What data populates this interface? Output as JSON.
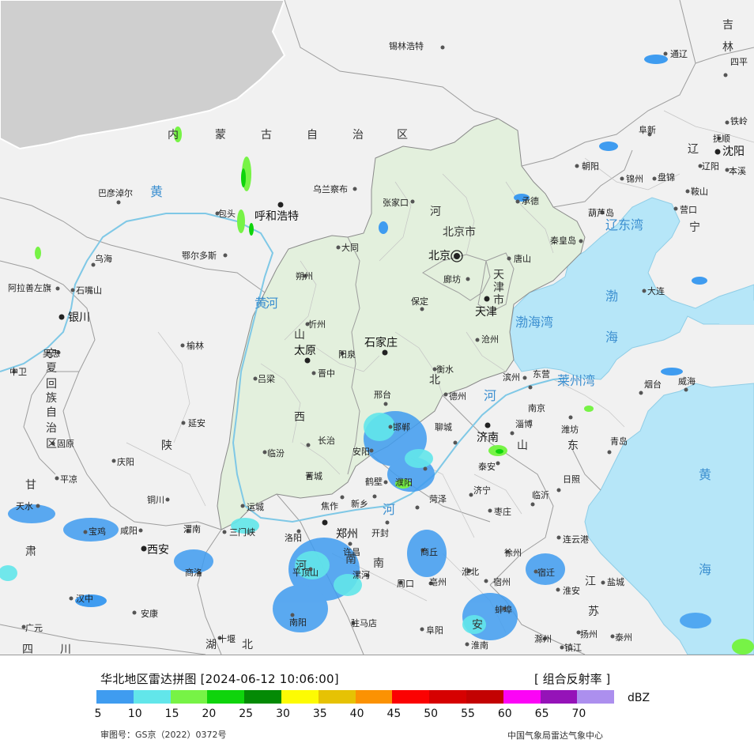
{
  "legend": {
    "title": "华北地区雷达拼图 [2024-06-12 10:06:00]",
    "product": "[ 组合反射率 ]",
    "unit": "dBZ",
    "review_number": "审图号：GS京（2022）0372号",
    "source": "中国气象局雷达气象中心",
    "scale": [
      {
        "value": "5",
        "color": "#3f9cf0"
      },
      {
        "value": "10",
        "color": "#62e6ea"
      },
      {
        "value": "15",
        "color": "#77f346"
      },
      {
        "value": "20",
        "color": "#0fd40c"
      },
      {
        "value": "25",
        "color": "#048a05"
      },
      {
        "value": "30",
        "color": "#fdfb03"
      },
      {
        "value": "35",
        "color": "#e6c204"
      },
      {
        "value": "40",
        "color": "#fb9203"
      },
      {
        "value": "45",
        "color": "#fb0202"
      },
      {
        "value": "50",
        "color": "#d60101"
      },
      {
        "value": "55",
        "color": "#c30202"
      },
      {
        "value": "60",
        "color": "#fc04f6"
      },
      {
        "value": "65",
        "color": "#9513b8"
      },
      {
        "value": "70",
        "color": "#ac8fee"
      }
    ]
  },
  "map": {
    "colors": {
      "land": "#f1f1f1",
      "sea": "#b6e6f8",
      "region": "#e3f0dd",
      "foreign": "#cfcfcf"
    },
    "cities": [
      {
        "name": "锡林浩特"
      },
      {
        "name": "通辽"
      },
      {
        "name": "四平"
      },
      {
        "name": "铁岭"
      },
      {
        "name": "抚顺"
      },
      {
        "name": "阜新"
      },
      {
        "name": "沈阳"
      },
      {
        "name": "本溪"
      },
      {
        "name": "辽阳"
      },
      {
        "name": "朝阳"
      },
      {
        "name": "锦州"
      },
      {
        "name": "盘锦"
      },
      {
        "name": "鞍山"
      },
      {
        "name": "营口"
      },
      {
        "name": "葫芦岛"
      },
      {
        "name": "承德"
      },
      {
        "name": "秦皇岛"
      },
      {
        "name": "张家口"
      },
      {
        "name": "乌兰察布"
      },
      {
        "name": "呼和浩特"
      },
      {
        "name": "包头"
      },
      {
        "name": "巴彦淖尔"
      },
      {
        "name": "鄂尔多斯"
      },
      {
        "name": "乌海"
      },
      {
        "name": "石嘴山"
      },
      {
        "name": "阿拉善左旗"
      },
      {
        "name": "银川"
      },
      {
        "name": "吴忠"
      },
      {
        "name": "中卫"
      },
      {
        "name": "固原"
      },
      {
        "name": "平凉"
      },
      {
        "name": "天水"
      },
      {
        "name": "宝鸡"
      },
      {
        "name": "咸阳"
      },
      {
        "name": "西安"
      },
      {
        "name": "渭南"
      },
      {
        "name": "铜川"
      },
      {
        "name": "延安"
      },
      {
        "name": "榆林"
      },
      {
        "name": "庆阳"
      },
      {
        "name": "汉中"
      },
      {
        "name": "安康"
      },
      {
        "name": "商洛"
      },
      {
        "name": "十堰"
      },
      {
        "name": "广元"
      },
      {
        "name": "大同"
      },
      {
        "name": "朔州"
      },
      {
        "name": "忻州"
      },
      {
        "name": "太原"
      },
      {
        "name": "阳泉"
      },
      {
        "name": "晋中"
      },
      {
        "name": "吕梁"
      },
      {
        "name": "临汾"
      },
      {
        "name": "长治"
      },
      {
        "name": "晋城"
      },
      {
        "name": "运城"
      },
      {
        "name": "三门峡"
      },
      {
        "name": "洛阳"
      },
      {
        "name": "郑州"
      },
      {
        "name": "开封"
      },
      {
        "name": "许昌"
      },
      {
        "name": "焦作"
      },
      {
        "name": "新乡"
      },
      {
        "name": "安阳"
      },
      {
        "name": "鹤壁"
      },
      {
        "name": "濮阳"
      },
      {
        "name": "平顶山"
      },
      {
        "name": "漯河"
      },
      {
        "name": "周口"
      },
      {
        "name": "南阳"
      },
      {
        "name": "驻马店"
      },
      {
        "name": "商丘"
      },
      {
        "name": "北京"
      },
      {
        "name": "天津"
      },
      {
        "name": "廊坊"
      },
      {
        "name": "唐山"
      },
      {
        "name": "保定"
      },
      {
        "name": "石家庄"
      },
      {
        "name": "沧州"
      },
      {
        "name": "衡水"
      },
      {
        "name": "邢台"
      },
      {
        "name": "邯郸"
      },
      {
        "name": "德州"
      },
      {
        "name": "滨州"
      },
      {
        "name": "东营"
      },
      {
        "name": "聊城"
      },
      {
        "name": "济南"
      },
      {
        "name": "淄博"
      },
      {
        "name": "潍坊"
      },
      {
        "name": "烟台"
      },
      {
        "name": "威海"
      },
      {
        "name": "青岛"
      },
      {
        "name": "日照"
      },
      {
        "name": "泰安"
      },
      {
        "name": "济宁"
      },
      {
        "name": "菏泽"
      },
      {
        "name": "枣庄"
      },
      {
        "name": "临沂"
      },
      {
        "name": "徐州"
      },
      {
        "name": "连云港"
      },
      {
        "name": "宿迁"
      },
      {
        "name": "淮安"
      },
      {
        "name": "盐城"
      },
      {
        "name": "宿州"
      },
      {
        "name": "亳州"
      },
      {
        "name": "淮北"
      },
      {
        "name": "阜阳"
      },
      {
        "name": "蚌埠"
      },
      {
        "name": "淮南"
      },
      {
        "name": "滁州"
      },
      {
        "name": "扬州"
      },
      {
        "name": "泰州"
      },
      {
        "name": "镇江"
      },
      {
        "name": "大连"
      },
      {
        "name": "南京"
      }
    ],
    "province_labels": [
      "内",
      "蒙",
      "古",
      "自",
      "治",
      "区",
      "河",
      "北",
      "北京市",
      "天",
      "津",
      "市",
      "山",
      "西",
      "陕",
      "甘",
      "肃",
      "宁",
      "夏",
      "回",
      "族",
      "自",
      "治",
      "区",
      "山",
      "东",
      "辽",
      "宁",
      "吉",
      "林",
      "江",
      "苏",
      "安",
      "湖",
      "北",
      "四",
      "川",
      "南",
      "河",
      "南"
    ],
    "water_labels": [
      "渤",
      "海",
      "渤海湾",
      "莱州湾",
      "辽东湾",
      "黄",
      "海",
      "黄",
      "河",
      "黄",
      "河",
      "河"
    ]
  }
}
